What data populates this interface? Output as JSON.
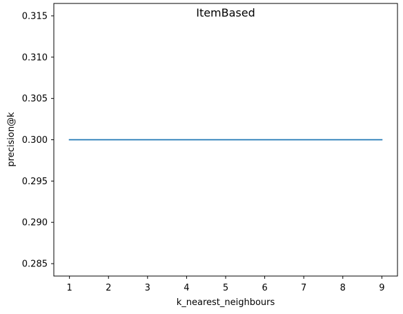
{
  "chart_data": {
    "type": "line",
    "title": "ItemBased",
    "xlabel": "k_nearest_neighbours",
    "ylabel": "precision@k",
    "x": [
      1,
      2,
      3,
      4,
      5,
      6,
      7,
      8,
      9
    ],
    "series": [
      {
        "values": [
          0.3,
          0.3,
          0.3,
          0.3,
          0.3,
          0.3,
          0.3,
          0.3,
          0.3
        ],
        "color": "#1f77b4"
      }
    ],
    "xlim": [
      0.6,
      9.4
    ],
    "ylim": [
      0.2835,
      0.3165
    ],
    "xticks": [
      1,
      2,
      3,
      4,
      5,
      6,
      7,
      8,
      9
    ],
    "yticks": [
      0.285,
      0.29,
      0.295,
      0.3,
      0.305,
      0.31,
      0.315
    ],
    "ytick_labels": [
      "0.285",
      "0.290",
      "0.295",
      "0.300",
      "0.305",
      "0.310",
      "0.315"
    ],
    "grid": false,
    "legend": "none"
  }
}
